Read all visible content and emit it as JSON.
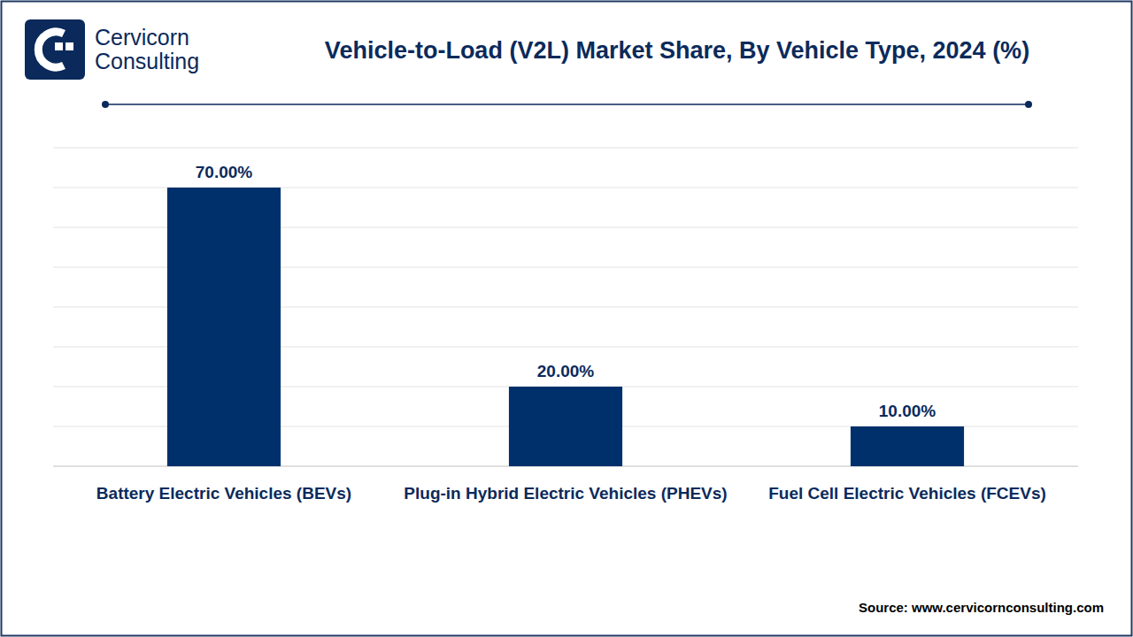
{
  "logo_lines": [
    "Cervicorn",
    "Consulting"
  ],
  "chart_data": {
    "type": "bar",
    "title": "Vehicle-to-Load (V2L) Market Share, By Vehicle Type, 2024 (%)",
    "source": "Source: www.cervicornconsulting.com",
    "categories": [
      "Battery Electric Vehicles (BEVs)",
      "Plug-in Hybrid Electric Vehicles (PHEVs)",
      "Fuel Cell Electric Vehicles (FCEVs)"
    ],
    "values": [
      70,
      20,
      10
    ],
    "value_labels": [
      "70.00%",
      "20.00%",
      "10.00%"
    ],
    "color": "#00306b",
    "ylim": [
      0,
      80
    ],
    "yticks": [
      0,
      10,
      20,
      30,
      40,
      50,
      60,
      70,
      80
    ],
    "grid": true,
    "data_labels": true,
    "tick_labels": "x"
  }
}
